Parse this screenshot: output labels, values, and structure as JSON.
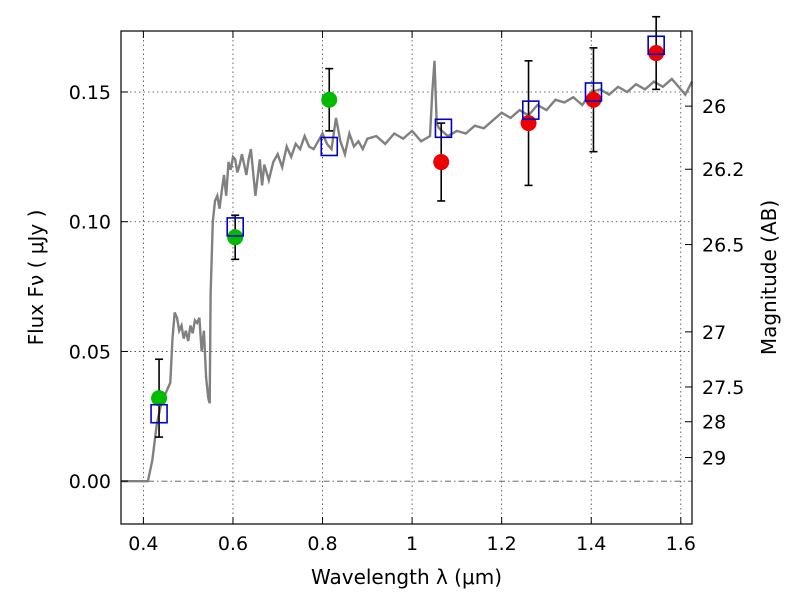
{
  "chart_data": {
    "type": "scatter",
    "title": "",
    "xlabel": "Wavelength  λ (μm)",
    "ylabel": "Flux  Fν  ( μJy )",
    "y2label": "Magnitude (AB)",
    "xlim": [
      0.35,
      1.625
    ],
    "ylim": [
      -0.0165,
      0.1735
    ],
    "grid": true,
    "xticks": [
      0.4,
      0.6,
      0.8,
      1.0,
      1.2,
      1.4,
      1.6
    ],
    "xtick_labels": [
      "0.4",
      "0.6",
      "0.8",
      "1",
      "1.2",
      "1.4",
      "1.6"
    ],
    "yticks": [
      0.0,
      0.05,
      0.1,
      0.15
    ],
    "ytick_labels": [
      "0.00",
      "0.05",
      "0.10",
      "0.15"
    ],
    "mag_ticks": [
      26,
      26.2,
      26.5,
      27,
      27.5,
      28,
      29
    ],
    "mag_tick_labels": [
      "26",
      "26.2",
      "26.5",
      "27",
      "27.5",
      "28",
      "29"
    ],
    "model_spectrum": {
      "color": "#808080",
      "x": [
        0.35,
        0.41,
        0.42,
        0.43,
        0.44,
        0.45,
        0.46,
        0.465,
        0.47,
        0.475,
        0.48,
        0.485,
        0.49,
        0.495,
        0.5,
        0.505,
        0.51,
        0.515,
        0.52,
        0.525,
        0.53,
        0.535,
        0.54,
        0.545,
        0.548,
        0.55,
        0.555,
        0.56,
        0.565,
        0.57,
        0.575,
        0.58,
        0.585,
        0.59,
        0.595,
        0.6,
        0.605,
        0.61,
        0.615,
        0.62,
        0.63,
        0.635,
        0.64,
        0.65,
        0.66,
        0.665,
        0.67,
        0.68,
        0.69,
        0.7,
        0.71,
        0.72,
        0.73,
        0.74,
        0.75,
        0.76,
        0.77,
        0.78,
        0.79,
        0.8,
        0.81,
        0.82,
        0.83,
        0.84,
        0.85,
        0.86,
        0.87,
        0.88,
        0.89,
        0.9,
        0.92,
        0.94,
        0.96,
        0.98,
        1.0,
        1.02,
        1.04,
        1.045,
        1.05,
        1.055,
        1.06,
        1.08,
        1.1,
        1.12,
        1.14,
        1.16,
        1.18,
        1.2,
        1.22,
        1.24,
        1.26,
        1.28,
        1.3,
        1.32,
        1.34,
        1.36,
        1.38,
        1.4,
        1.42,
        1.44,
        1.46,
        1.48,
        1.5,
        1.52,
        1.54,
        1.56,
        1.58,
        1.6,
        1.61,
        1.625
      ],
      "y": [
        0.0,
        0.0,
        0.008,
        0.022,
        0.03,
        0.034,
        0.038,
        0.055,
        0.065,
        0.063,
        0.058,
        0.06,
        0.055,
        0.058,
        0.054,
        0.06,
        0.057,
        0.062,
        0.061,
        0.063,
        0.05,
        0.058,
        0.04,
        0.032,
        0.03,
        0.072,
        0.1,
        0.108,
        0.11,
        0.105,
        0.112,
        0.118,
        0.11,
        0.123,
        0.12,
        0.125,
        0.124,
        0.119,
        0.122,
        0.126,
        0.118,
        0.124,
        0.128,
        0.11,
        0.124,
        0.114,
        0.122,
        0.116,
        0.123,
        0.126,
        0.121,
        0.129,
        0.125,
        0.13,
        0.128,
        0.133,
        0.129,
        0.128,
        0.131,
        0.134,
        0.13,
        0.128,
        0.14,
        0.131,
        0.126,
        0.134,
        0.129,
        0.131,
        0.128,
        0.132,
        0.133,
        0.13,
        0.134,
        0.132,
        0.135,
        0.131,
        0.133,
        0.15,
        0.162,
        0.138,
        0.136,
        0.133,
        0.135,
        0.134,
        0.137,
        0.136,
        0.139,
        0.142,
        0.14,
        0.143,
        0.141,
        0.145,
        0.143,
        0.147,
        0.146,
        0.148,
        0.145,
        0.15,
        0.151,
        0.149,
        0.152,
        0.15,
        0.153,
        0.151,
        0.154,
        0.152,
        0.155,
        0.151,
        0.149,
        0.154
      ]
    },
    "series": [
      {
        "marker": "circle",
        "color": "#00bb00",
        "points": [
          {
            "x": 0.435,
            "y": 0.032,
            "yerr": 0.015
          },
          {
            "x": 0.605,
            "y": 0.094,
            "yerr": 0.0085
          },
          {
            "x": 0.815,
            "y": 0.147,
            "yerr": 0.012
          }
        ]
      },
      {
        "marker": "circle",
        "color": "#ee0000",
        "points": [
          {
            "x": 1.065,
            "y": 0.123,
            "yerr": 0.015
          },
          {
            "x": 1.26,
            "y": 0.138,
            "yerr": 0.024
          },
          {
            "x": 1.405,
            "y": 0.147,
            "yerr": 0.02
          },
          {
            "x": 1.545,
            "y": 0.165,
            "yerr": 0.014
          }
        ]
      },
      {
        "marker": "open-square",
        "color": "#0000cc",
        "points": [
          {
            "x": 0.435,
            "y": 0.026
          },
          {
            "x": 0.605,
            "y": 0.098
          },
          {
            "x": 0.815,
            "y": 0.129
          },
          {
            "x": 1.07,
            "y": 0.136
          },
          {
            "x": 1.265,
            "y": 0.143
          },
          {
            "x": 1.405,
            "y": 0.15
          },
          {
            "x": 1.545,
            "y": 0.168
          }
        ]
      }
    ]
  }
}
